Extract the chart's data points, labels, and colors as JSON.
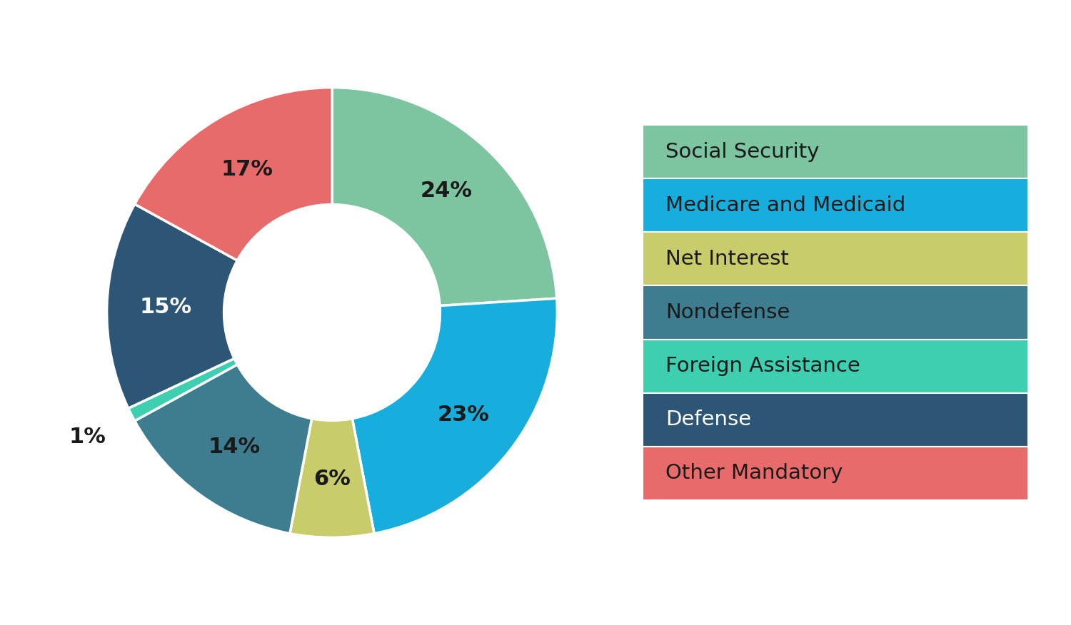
{
  "labels": [
    "Social Security",
    "Medicare and Medicaid",
    "Net Interest",
    "Nondefense",
    "Foreign Assistance",
    "Defense",
    "Other Mandatory"
  ],
  "values": [
    24,
    23,
    6,
    14,
    1,
    15,
    17
  ],
  "colors": [
    "#7DC4A0",
    "#17AEDD",
    "#C9CC6B",
    "#3D7D8F",
    "#3ECFB0",
    "#2D5575",
    "#E86B6B"
  ],
  "pct_labels": [
    "24%",
    "23%",
    "6%",
    "14%",
    "1%",
    "15%",
    "17%"
  ],
  "legend_text_colors": [
    "#1a1a1a",
    "#1a1a1a",
    "#1a1a1a",
    "#1a1a1a",
    "#1a1a1a",
    "#ffffff",
    "#1a1a1a"
  ],
  "background_color": "#ffffff",
  "wedge_edge_color": "#ffffff",
  "font_size_pct": 22,
  "font_size_legend": 21,
  "small_label_indices": [
    4
  ],
  "white_text_indices": [
    5
  ]
}
